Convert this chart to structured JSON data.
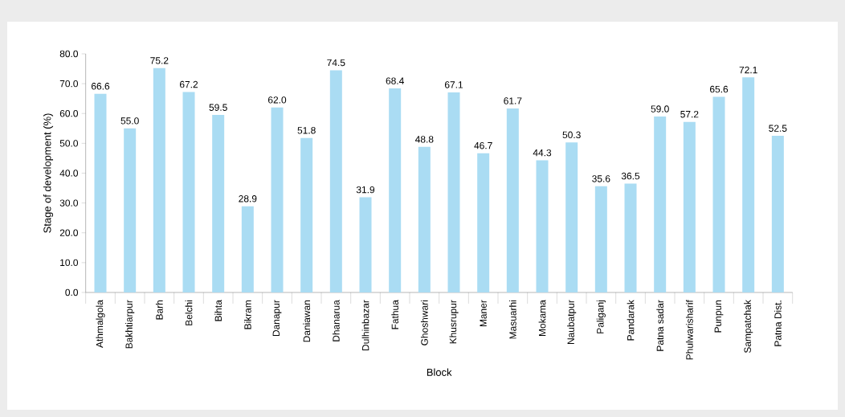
{
  "chart_data": {
    "type": "bar",
    "xlabel": "Block",
    "ylabel": "Stage of development (%)",
    "categories": [
      "Athmalgola",
      "Bakhtiarpur",
      "Barh",
      "Belchi",
      "Bihta",
      "Bikram",
      "Danapur",
      "Daniawan",
      "Dhanarua",
      "Dulhinbazar",
      "Fathua",
      "Ghoshwari",
      "Khusrupur",
      "Maner",
      "Masuarhi",
      "Mokama",
      "Naubatpur",
      "Paliganj",
      "Pandarak",
      "Patna sadar",
      "Phulwarisharif",
      "Punpun",
      "Sampatchak",
      "Patna Dist."
    ],
    "values": [
      66.6,
      55.0,
      75.2,
      67.2,
      59.5,
      28.9,
      62.0,
      51.8,
      74.5,
      31.9,
      68.4,
      48.8,
      67.1,
      46.7,
      61.7,
      44.3,
      50.3,
      35.6,
      36.5,
      59.0,
      57.2,
      65.6,
      72.1,
      52.5
    ],
    "value_labels": [
      "66.6",
      "55.0",
      "75.2",
      "67.2",
      "59.5",
      "28.9",
      "62.0",
      "51.8",
      "74.5",
      "31.9",
      "68.4",
      "48.8",
      "67.1",
      "46.7",
      "61.7",
      "44.3",
      "50.3",
      "35.6",
      "36.5",
      "59.0",
      "57.2",
      "65.6",
      "72.1",
      "52.5"
    ],
    "color": "#aadcf3",
    "ylim": [
      0,
      80
    ],
    "grid": false,
    "yticks": [
      {
        "value": 0,
        "label": "0.0"
      },
      {
        "value": 10,
        "label": "10.0"
      },
      {
        "value": 20,
        "label": "20.0"
      },
      {
        "value": 30,
        "label": "30.0"
      },
      {
        "value": 40,
        "label": "40.0"
      },
      {
        "value": 50,
        "label": "50.0"
      },
      {
        "value": 60,
        "label": "60.0"
      },
      {
        "value": 70,
        "label": "70.0"
      },
      {
        "value": 80,
        "label": "80.0"
      }
    ]
  }
}
